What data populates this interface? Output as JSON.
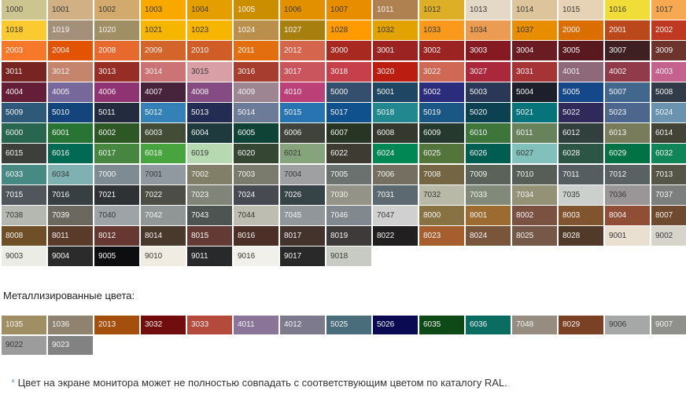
{
  "main": {
    "rows": [
      [
        [
          "1000",
          "#cdc58f"
        ],
        [
          "1001",
          "#d0b084"
        ],
        [
          "1002",
          "#d2aa6d"
        ],
        [
          "1003",
          "#f9a800"
        ],
        [
          "1004",
          "#e49e00"
        ],
        [
          "1005",
          "#cb8e00"
        ],
        [
          "1006",
          "#e29000"
        ],
        [
          "1007",
          "#e88c00"
        ],
        [
          "1011",
          "#af8050"
        ],
        [
          "1012",
          "#ddaf27"
        ],
        [
          "1013",
          "#e3d9c6"
        ],
        [
          "1014",
          "#ddc49a"
        ],
        [
          "1015",
          "#e6d2b5"
        ],
        [
          "1016",
          "#f1dd38"
        ],
        [
          "1017",
          "#f6a950"
        ]
      ],
      [
        [
          "1018",
          "#faca30"
        ],
        [
          "1019",
          "#a48f7a"
        ],
        [
          "1020",
          "#a08f65"
        ],
        [
          "1021",
          "#f6b600"
        ],
        [
          "1023",
          "#f7b500"
        ],
        [
          "1024",
          "#ba8f4c"
        ],
        [
          "1027",
          "#a77f0e"
        ],
        [
          "1028",
          "#ff9b00"
        ],
        [
          "1032",
          "#e2a300"
        ],
        [
          "1033",
          "#f99a1c"
        ],
        [
          "1034",
          "#eb9c52"
        ],
        [
          "1037",
          "#e88c00"
        ],
        [
          "2000",
          "#da6e00"
        ],
        [
          "2001",
          "#ba481b"
        ],
        [
          "2002",
          "#bf3922"
        ]
      ],
      [
        [
          "2003",
          "#f67828"
        ],
        [
          "2004",
          "#e25303"
        ],
        [
          "2008",
          "#e8692d"
        ],
        [
          "2009",
          "#d4652a"
        ],
        [
          "2010",
          "#d05d28"
        ],
        [
          "2011",
          "#e26e0e"
        ],
        [
          "2012",
          "#d5654d"
        ],
        [
          "3000",
          "#a72920"
        ],
        [
          "3001",
          "#9b2423"
        ],
        [
          "3002",
          "#9b2321"
        ],
        [
          "3003",
          "#861a22"
        ],
        [
          "3004",
          "#6b1c23"
        ],
        [
          "3005",
          "#59191f"
        ],
        [
          "3007",
          "#3e2022"
        ],
        [
          "3009",
          "#6d342d"
        ]
      ],
      [
        [
          "3011",
          "#782423"
        ],
        [
          "3012",
          "#c5856d"
        ],
        [
          "3013",
          "#972e25"
        ],
        [
          "3014",
          "#cb7375"
        ],
        [
          "3015",
          "#d8a0a6"
        ],
        [
          "3016",
          "#a63d2f"
        ],
        [
          "3017",
          "#cb555d"
        ],
        [
          "3018",
          "#c73f4a"
        ],
        [
          "3020",
          "#bb1e10"
        ],
        [
          "3022",
          "#cf6955"
        ],
        [
          "3027",
          "#ab273c"
        ],
        [
          "3031",
          "#a63437"
        ],
        [
          "4001",
          "#8d697a"
        ],
        [
          "4002",
          "#913a4a"
        ],
        [
          "4003",
          "#c4618c"
        ]
      ],
      [
        [
          "4004",
          "#651e38"
        ],
        [
          "4005",
          "#76689a"
        ],
        [
          "4006",
          "#903373"
        ],
        [
          "4007",
          "#47243c"
        ],
        [
          "4008",
          "#844c82"
        ],
        [
          "4009",
          "#9d8692"
        ],
        [
          "4010",
          "#bb4077"
        ],
        [
          "5000",
          "#344f6e"
        ],
        [
          "5001",
          "#1f4764"
        ],
        [
          "5002",
          "#2b2c7c"
        ],
        [
          "5003",
          "#2a3756"
        ],
        [
          "5004",
          "#1d1f2a"
        ],
        [
          "5005",
          "#154889"
        ],
        [
          "5007",
          "#41678d"
        ],
        [
          "5008",
          "#313c48"
        ]
      ],
      [
        [
          "5009",
          "#2e5978"
        ],
        [
          "5010",
          "#13447c"
        ],
        [
          "5011",
          "#232c3f"
        ],
        [
          "5012",
          "#3481b8"
        ],
        [
          "5013",
          "#232d53"
        ],
        [
          "5014",
          "#6c7c98"
        ],
        [
          "5015",
          "#2874b2"
        ],
        [
          "5017",
          "#0e518d"
        ],
        [
          "5018",
          "#21888f"
        ],
        [
          "5019",
          "#1a5784"
        ],
        [
          "5020",
          "#0b4151"
        ],
        [
          "5021",
          "#07737a"
        ],
        [
          "5022",
          "#2f2a5a"
        ],
        [
          "5023",
          "#4d668e"
        ],
        [
          "5024",
          "#6a93b0"
        ]
      ],
      [
        [
          "6000",
          "#296650"
        ],
        [
          "6001",
          "#287435"
        ],
        [
          "6002",
          "#2d5725"
        ],
        [
          "6003",
          "#424c36"
        ],
        [
          "6004",
          "#1f3a3d"
        ],
        [
          "6005",
          "#0f4336"
        ],
        [
          "6006",
          "#40433b"
        ],
        [
          "6007",
          "#283424"
        ],
        [
          "6008",
          "#35382e"
        ],
        [
          "6009",
          "#26392f"
        ],
        [
          "6010",
          "#3e753b"
        ],
        [
          "6011",
          "#68825b"
        ],
        [
          "6012",
          "#31403d"
        ],
        [
          "6013",
          "#797c5a"
        ],
        [
          "6014",
          "#444337"
        ]
      ],
      [
        [
          "6015",
          "#3d403a"
        ],
        [
          "6016",
          "#026a52"
        ],
        [
          "6017",
          "#468641"
        ],
        [
          "6018",
          "#48a43f"
        ],
        [
          "6019",
          "#b7d9b1"
        ],
        [
          "6020",
          "#354733"
        ],
        [
          "6021",
          "#86a47c"
        ],
        [
          "6022",
          "#3e3c32"
        ],
        [
          "6024",
          "#008754"
        ],
        [
          "6025",
          "#53753c"
        ],
        [
          "6026",
          "#005d52"
        ],
        [
          "6027",
          "#81c0bb"
        ],
        [
          "6028",
          "#2d5546"
        ],
        [
          "6029",
          "#007243"
        ],
        [
          "6032",
          "#0f8558"
        ]
      ],
      [
        [
          "6033",
          "#478a84"
        ],
        [
          "6034",
          "#7fb0b2"
        ],
        [
          "7000",
          "#7e8b92"
        ],
        [
          "7001",
          "#8f999f"
        ],
        [
          "7002",
          "#817f68"
        ],
        [
          "7003",
          "#7a7b6d"
        ],
        [
          "7004",
          "#9ea0a1"
        ],
        [
          "7005",
          "#6b716f"
        ],
        [
          "7006",
          "#756f61"
        ],
        [
          "7008",
          "#746643"
        ],
        [
          "7009",
          "#5b6259"
        ],
        [
          "7010",
          "#575d57"
        ],
        [
          "7011",
          "#555d61"
        ],
        [
          "7012",
          "#596163"
        ],
        [
          "7013",
          "#555548"
        ]
      ],
      [
        [
          "7015",
          "#51565c"
        ],
        [
          "7016",
          "#373f43"
        ],
        [
          "7021",
          "#2e3234"
        ],
        [
          "7022",
          "#4b4d46"
        ],
        [
          "7023",
          "#818479"
        ],
        [
          "7024",
          "#474a50"
        ],
        [
          "7026",
          "#374447"
        ],
        [
          "7030",
          "#939388"
        ],
        [
          "7031",
          "#5d6970"
        ],
        [
          "7032",
          "#b9b9a8"
        ],
        [
          "7033",
          "#818979"
        ],
        [
          "7034",
          "#939176"
        ],
        [
          "7035",
          "#cbd0cc"
        ],
        [
          "7036",
          "#9a9697"
        ],
        [
          "7037",
          "#7c7f7e"
        ]
      ],
      [
        [
          "7038",
          "#b4b8b0"
        ],
        [
          "7039",
          "#6b695f"
        ],
        [
          "7040",
          "#9da3a6"
        ],
        [
          "7042",
          "#8f9695"
        ],
        [
          "7043",
          "#4e5451"
        ],
        [
          "7044",
          "#bdbdb2"
        ],
        [
          "7045",
          "#91969a"
        ],
        [
          "7046",
          "#82898e"
        ],
        [
          "7047",
          "#cfd0cf"
        ],
        [
          "8000",
          "#887142"
        ],
        [
          "8001",
          "#9c6b30"
        ],
        [
          "8002",
          "#7b5141"
        ],
        [
          "8003",
          "#80542f"
        ],
        [
          "8004",
          "#8f4e35"
        ],
        [
          "8007",
          "#6f4a2f"
        ]
      ],
      [
        [
          "8008",
          "#6f4f28"
        ],
        [
          "8011",
          "#5a3a29"
        ],
        [
          "8012",
          "#673831"
        ],
        [
          "8014",
          "#49392d"
        ],
        [
          "8015",
          "#633a34"
        ],
        [
          "8016",
          "#4c2f26"
        ],
        [
          "8017",
          "#44322d"
        ],
        [
          "8019",
          "#3f3a3a"
        ],
        [
          "8022",
          "#211f20"
        ],
        [
          "8023",
          "#a65e2f"
        ],
        [
          "8024",
          "#79553c"
        ],
        [
          "8025",
          "#755847"
        ],
        [
          "8028",
          "#513a2a"
        ],
        [
          "9001",
          "#e9e0d2"
        ],
        [
          "9002",
          "#d7d5cb"
        ]
      ],
      [
        [
          "9003",
          "#ecece7"
        ],
        [
          "9004",
          "#2b2b2c"
        ],
        [
          "9005",
          "#0e0e10"
        ],
        [
          "9010",
          "#f1ece1"
        ],
        [
          "9011",
          "#27292b"
        ],
        [
          "9016",
          "#f1f0ea"
        ],
        [
          "9017",
          "#2a292a"
        ],
        [
          "9018",
          "#c8cbc4"
        ]
      ]
    ]
  },
  "metal": {
    "heading": "Металлизированные цвета:",
    "rows": [
      [
        [
          "1035",
          "#a08f65"
        ],
        [
          "1036",
          "#8f8370"
        ],
        [
          "2013",
          "#a44f0c"
        ],
        [
          "3032",
          "#720d0d"
        ],
        [
          "3033",
          "#b44a3c"
        ],
        [
          "4011",
          "#8a7599"
        ],
        [
          "4012",
          "#7e7a8e"
        ],
        [
          "5025",
          "#4a6d7c"
        ],
        [
          "5026",
          "#0a0a52"
        ],
        [
          "6035",
          "#0e4a17"
        ],
        [
          "6036",
          "#0b6c62"
        ],
        [
          "7048",
          "#968d80"
        ],
        [
          "8029",
          "#7a4124"
        ],
        [
          "9006",
          "#a5a8a6"
        ],
        [
          "9007",
          "#8f8f8c"
        ]
      ],
      [
        [
          "9022",
          "#9c9c9c"
        ],
        [
          "9023",
          "#828282"
        ]
      ]
    ]
  },
  "footnote": {
    "star": "*",
    "text": " Цвет на экране монитора может не полностью совпадать с соответствующим цветом по каталогу RAL.",
    "tail": ",."
  }
}
